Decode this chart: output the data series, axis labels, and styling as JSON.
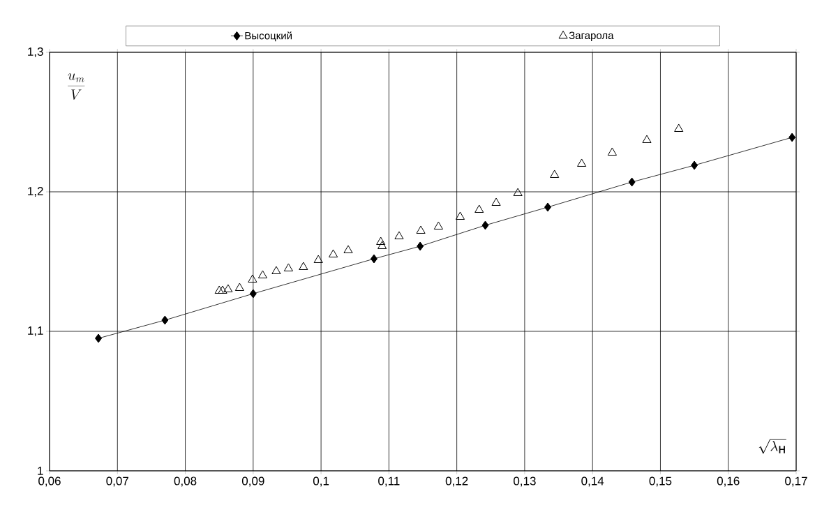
{
  "chart_data": {
    "type": "line",
    "xlabel": "\\sqrt{\\lambda_{\\mbox{н}}}",
    "ylabel": "\\frac{u_m}{V}",
    "xlim": [
      0.06,
      0.17
    ],
    "ylim": [
      1,
      1.3
    ],
    "xticks": [
      {
        "value": 0.06,
        "label": "0,06"
      },
      {
        "value": 0.07,
        "label": "0,07"
      },
      {
        "value": 0.08,
        "label": "0,08"
      },
      {
        "value": 0.09,
        "label": "0,09"
      },
      {
        "value": 0.1,
        "label": "0,1"
      },
      {
        "value": 0.11,
        "label": "0,11"
      },
      {
        "value": 0.12,
        "label": "0,12"
      },
      {
        "value": 0.13,
        "label": "0,13"
      },
      {
        "value": 0.14,
        "label": "0,14"
      },
      {
        "value": 0.15,
        "label": "0,15"
      },
      {
        "value": 0.16,
        "label": "0,16"
      },
      {
        "value": 0.17,
        "label": "0,17"
      }
    ],
    "yticks": [
      1,
      {
        "value": 1.1,
        "label": "1,1"
      },
      {
        "value": 1.2,
        "label": "1,2"
      },
      {
        "value": 1.3,
        "label": "1,3"
      }
    ],
    "grid": true,
    "legend": "top",
    "series": [
      {
        "name": "Высоцкий",
        "marker": "diamond",
        "color": "#000000",
        "x": [
          0.0672,
          0.077,
          0.09,
          0.1078,
          0.1146,
          0.1242,
          0.1334,
          0.1458,
          0.155,
          0.1694
        ],
        "values": [
          1.095,
          1.108,
          1.127,
          1.152,
          1.161,
          1.176,
          1.189,
          1.207,
          1.219,
          1.239
        ]
      },
      {
        "name": "Загарола",
        "type": "scatter",
        "marker": "triangle",
        "color": "#000000",
        "x": [
          0.085,
          0.0855,
          0.0863,
          0.088,
          0.0899,
          0.0914,
          0.0934,
          0.0952,
          0.0974,
          0.0996,
          0.1018,
          0.104,
          0.1088,
          0.109,
          0.1115,
          0.1147,
          0.1173,
          0.1205,
          0.1233,
          0.1258,
          0.129,
          0.1344,
          0.1384,
          0.1429,
          0.148,
          0.1527
        ],
        "values": [
          1.129,
          1.129,
          1.13,
          1.131,
          1.137,
          1.14,
          1.143,
          1.145,
          1.146,
          1.151,
          1.155,
          1.158,
          1.164,
          1.161,
          1.168,
          1.172,
          1.175,
          1.182,
          1.187,
          1.192,
          1.199,
          1.212,
          1.22,
          1.228,
          1.237,
          1.245
        ]
      }
    ]
  }
}
